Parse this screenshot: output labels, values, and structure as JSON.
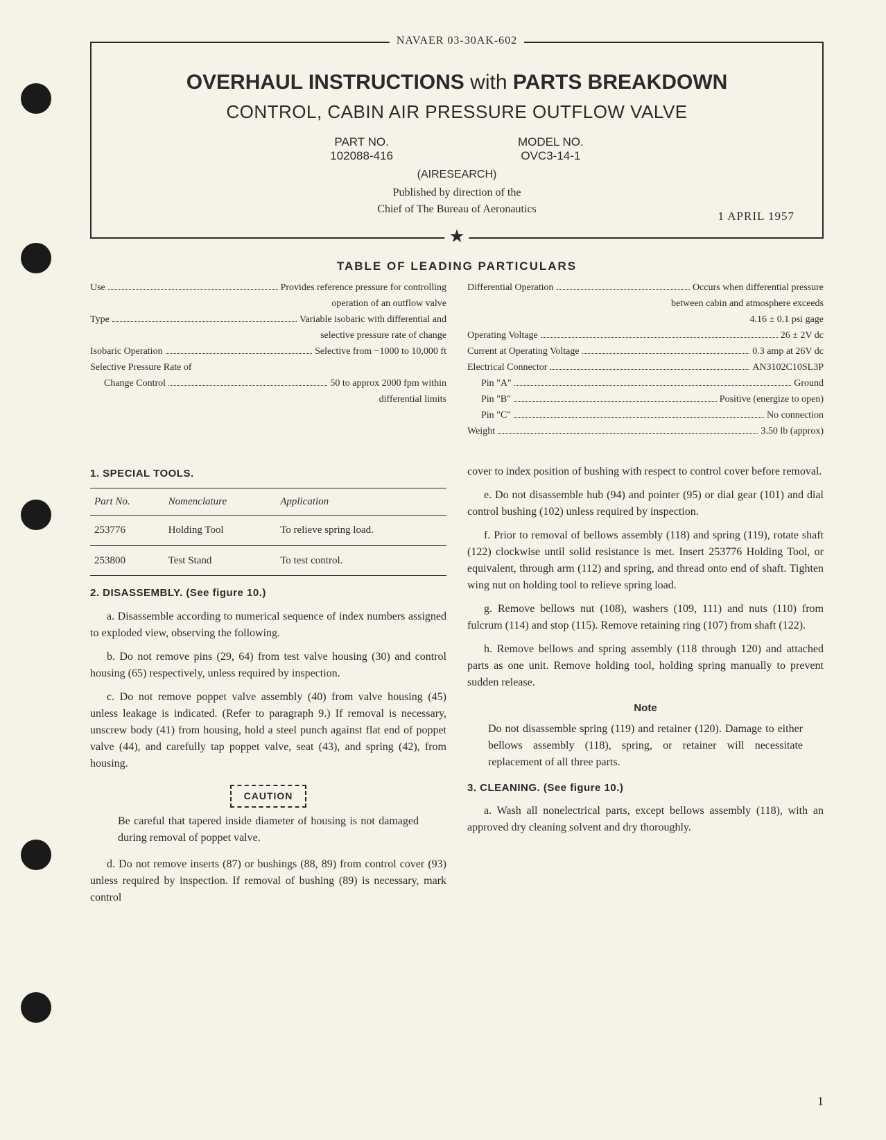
{
  "doc_id": "NAVAER 03-30AK-602",
  "title_box": {
    "main": "OVERHAUL INSTRUCTIONS",
    "with": "with",
    "parts": "PARTS BREAKDOWN",
    "subtitle": "CONTROL, CABIN AIR PRESSURE OUTFLOW VALVE",
    "part_no_label": "PART NO.",
    "part_no": "102088-416",
    "model_no_label": "MODEL NO.",
    "model_no": "OVC3-14-1",
    "company": "(AIRESEARCH)",
    "published_line1": "Published by direction of the",
    "published_line2": "Chief of The Bureau of Aeronautics",
    "date": "1 APRIL 1957"
  },
  "leading_heading": "TABLE OF LEADING PARTICULARS",
  "particulars_left": [
    {
      "label": "Use",
      "value": "Provides reference pressure for controlling",
      "cont": "operation of an outflow valve"
    },
    {
      "label": "Type",
      "value": "Variable isobaric with differential and",
      "cont": "selective pressure rate of change"
    },
    {
      "label": "Isobaric Operation",
      "value": "Selective from −1000 to 10,000 ft"
    },
    {
      "label": "Selective Pressure Rate of",
      "value": ""
    },
    {
      "label": "Change Control",
      "value": "50 to approx 2000 fpm within",
      "cont": "differential limits",
      "indent": true
    }
  ],
  "particulars_right": [
    {
      "label": "Differential Operation",
      "value": "Occurs when differential pressure",
      "cont": "between cabin and atmosphere exceeds",
      "cont2": "4.16 ± 0.1 psi gage"
    },
    {
      "label": "Operating Voltage",
      "value": "26 ± 2V dc"
    },
    {
      "label": "Current at Operating Voltage",
      "value": "0.3 amp at 26V dc"
    },
    {
      "label": "Electrical Connector",
      "value": "AN3102C10SL3P"
    },
    {
      "label": "Pin \"A\"",
      "value": "Ground",
      "indent": true
    },
    {
      "label": "Pin \"B\"",
      "value": "Positive (energize to open)",
      "indent": true
    },
    {
      "label": "Pin \"C\"",
      "value": "No connection",
      "indent": true
    },
    {
      "label": "Weight",
      "value": "3.50 lb (approx)"
    }
  ],
  "section1_head": "1. SPECIAL TOOLS.",
  "tools_table": {
    "headers": [
      "Part No.",
      "Nomenclature",
      "Application"
    ],
    "rows": [
      [
        "253776",
        "Holding Tool",
        "To relieve spring load."
      ],
      [
        "253800",
        "Test Stand",
        "To test control."
      ]
    ]
  },
  "section2_head": "2. DISASSEMBLY. (See figure 10.)",
  "left_paras": {
    "a": "a. Disassemble according to numerical sequence of index numbers assigned to exploded view, observing the following.",
    "b": "b. Do not remove pins (29, 64) from test valve housing (30) and control housing (65) respectively, unless required by inspection.",
    "c": "c. Do not remove poppet valve assembly (40) from valve housing (45) unless leakage is indicated. (Refer to paragraph 9.) If removal is necessary, unscrew body (41) from housing, hold a steel punch against flat end of poppet valve (44), and carefully tap poppet valve, seat (43), and spring (42), from housing.",
    "caution_label": "CAUTION",
    "caution_text": "Be careful that tapered inside diameter of housing is not damaged during removal of poppet valve.",
    "d": "d. Do not remove inserts (87) or bushings (88, 89) from control cover (93) unless required by inspection. If removal of bushing (89) is necessary, mark control"
  },
  "right_paras": {
    "d_cont": "cover to index position of bushing with respect to control cover before removal.",
    "e": "e. Do not disassemble hub (94) and pointer (95) or dial gear (101) and dial control bushing (102) unless required by inspection.",
    "f": "f. Prior to removal of bellows assembly (118) and spring (119), rotate shaft (122) clockwise until solid resistance is met. Insert 253776 Holding Tool, or equivalent, through arm (112) and spring, and thread onto end of shaft. Tighten wing nut on holding tool to relieve spring load.",
    "g": "g. Remove bellows nut (108), washers (109, 111) and nuts (110) from fulcrum (114) and stop (115). Remove retaining ring (107) from shaft (122).",
    "h": "h. Remove bellows and spring assembly (118 through 120) and attached parts as one unit. Remove holding tool, holding spring manually to prevent sudden release.",
    "note_label": "Note",
    "note_text": "Do not disassemble spring (119) and retainer (120). Damage to either bellows assembly (118), spring, or retainer will necessitate replacement of all three parts."
  },
  "section3_head": "3. CLEANING. (See figure 10.)",
  "section3_a": "a. Wash all nonelectrical parts, except bellows assembly (118), with an approved dry cleaning solvent and dry thoroughly.",
  "page_number": "1"
}
